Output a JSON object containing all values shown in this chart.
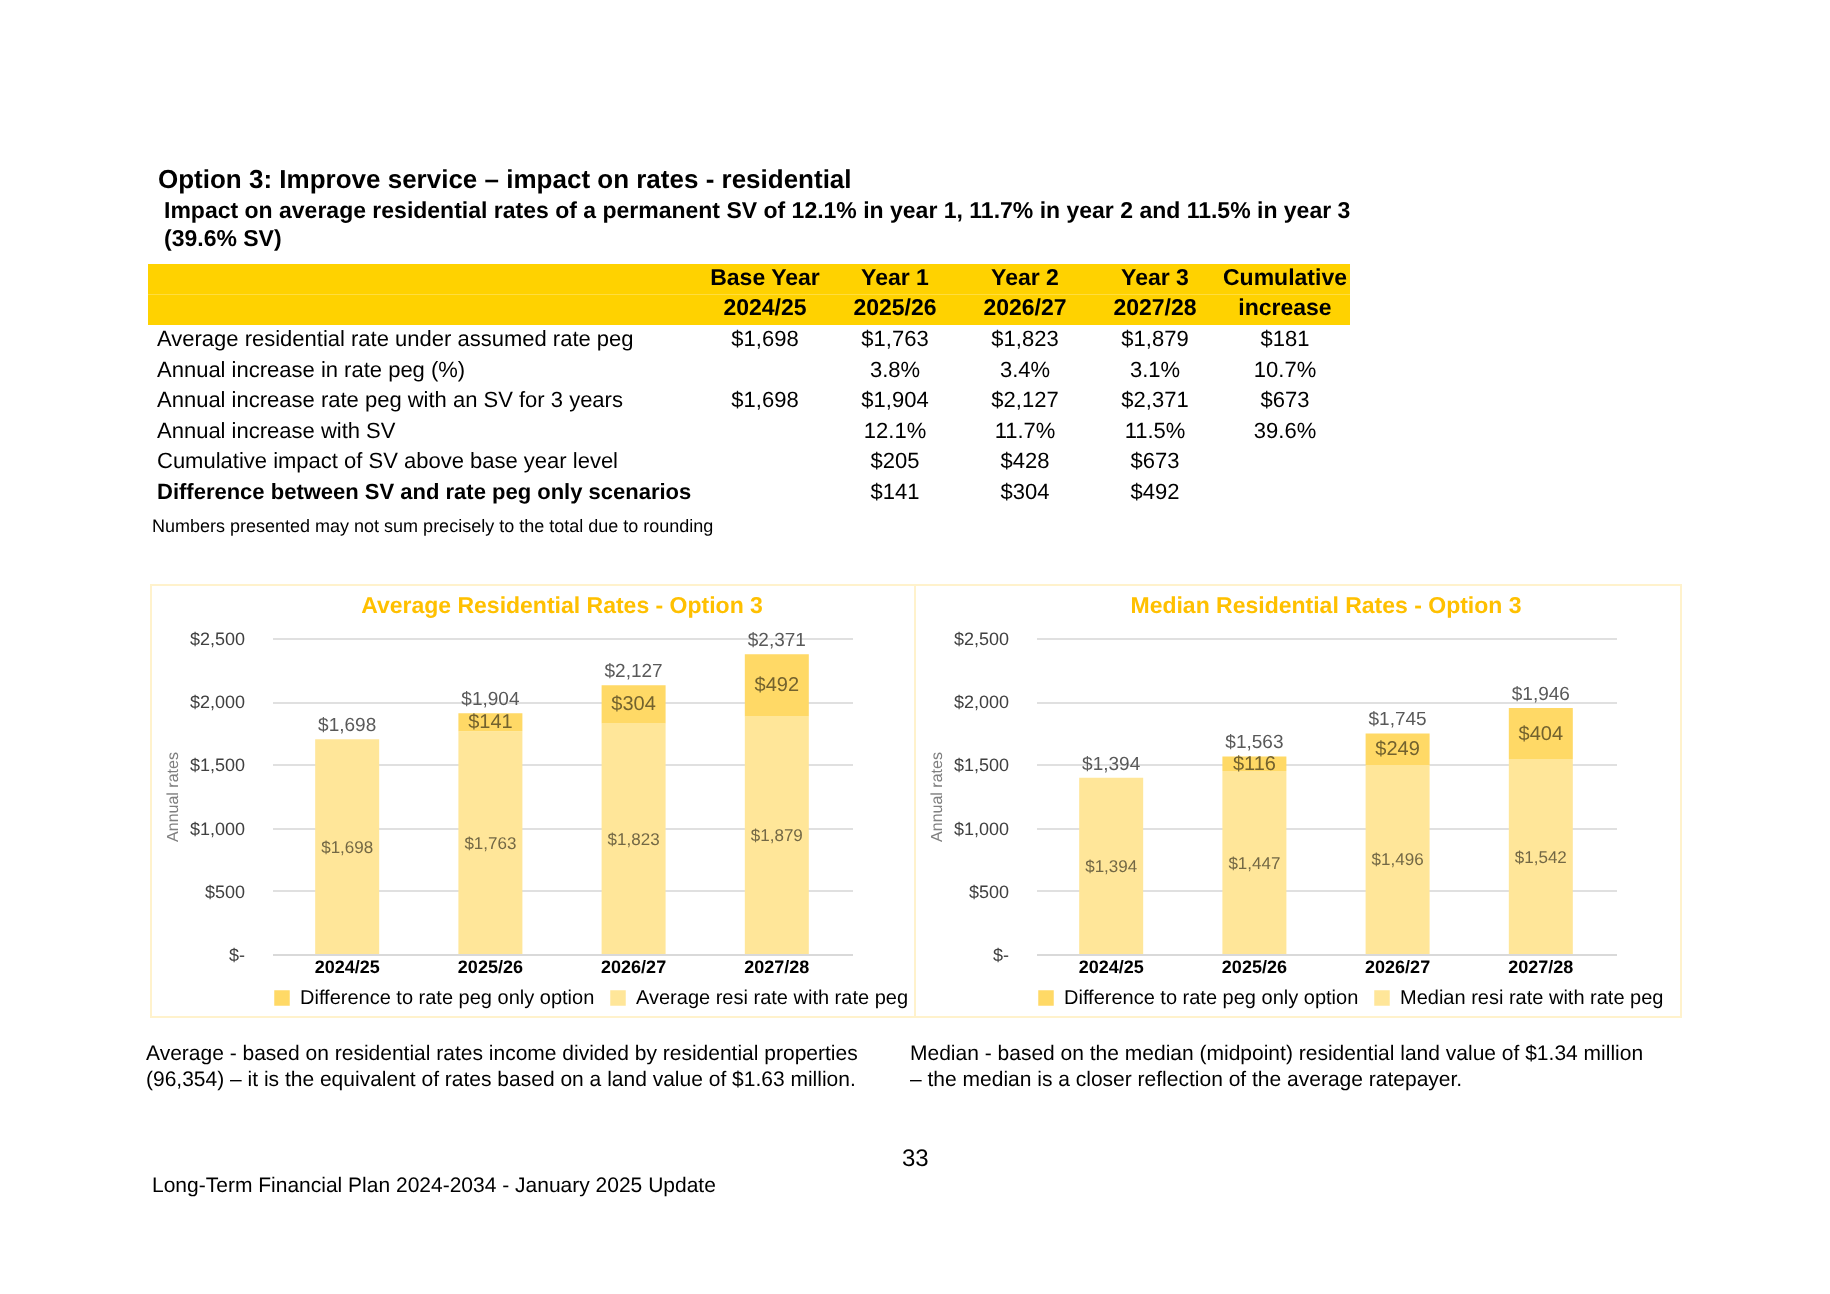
{
  "chart_data": [
    {
      "type": "heatmap",
      "title": "Option 3: Improve service – impact on rates - residential",
      "subtitle": "Impact on average residential rates of a permanent SV of 12.1% in year 1, 11.7% in year 2 and 11.5% in year 3 (39.6% SV)",
      "categories": [
        "Base Year\n2024/25",
        "Year 1\n2025/26",
        "Year 2\n2026/27",
        "Year 3\n2027/28",
        "Cumulative\nincrease"
      ],
      "y_categories": [
        "Average residential rate under assumed rate peg",
        "Annual increase in rate peg (%)",
        "Annual increase rate peg with an SV for 3 years",
        "Annual increase with SV",
        "Cumulative impact of SV above base year level",
        "Difference between SV and rate peg only scenarios"
      ],
      "cells": [
        [
          1698,
          1763,
          1823,
          1879,
          181
        ],
        [
          null,
          3.8,
          3.4,
          3.1,
          10.7
        ],
        [
          1698,
          1904,
          2127,
          2371,
          673
        ],
        [
          null,
          12.1,
          11.7,
          11.5,
          39.6
        ],
        [
          null,
          205,
          428,
          673,
          null
        ],
        [
          null,
          141,
          304,
          492,
          null
        ]
      ],
      "cell_labels": [
        [
          "$1,698",
          "$1,763",
          "$1,823",
          "$1,879",
          "$181"
        ],
        [
          null,
          "3.8%",
          "3.4%",
          "3.1%",
          "10.7%"
        ],
        [
          "$1,698",
          "$1,904",
          "$2,127",
          "$2,371",
          "$673"
        ],
        [
          null,
          "12.1%",
          "11.7%",
          "11.5%",
          "39.6%"
        ],
        [
          null,
          "$205",
          "$428",
          "$673",
          null
        ],
        [
          null,
          "$141",
          "$304",
          "$492",
          null
        ]
      ],
      "annotations": [
        "Numbers presented may not sum precisely to the total due to rounding",
        "33",
        "Long-Term Financial Plan 2024-2034 - January 2025 Update"
      ]
    },
    {
      "type": "bar",
      "title": "Average Residential Rates - Option 3",
      "ylabel": "Annual rates",
      "stacked": true,
      "legend": "bottom",
      "grid": "y",
      "categories": [
        "2024/25",
        "2025/26",
        "2026/27",
        "2027/28"
      ],
      "ylim": [
        0,
        2500
      ],
      "yticks": [
        {
          "value": 0,
          "label": "$-"
        },
        {
          "value": 500,
          "label": "$500"
        },
        {
          "value": 1000,
          "label": "$1,000"
        },
        {
          "value": 1500,
          "label": "$1,500"
        },
        {
          "value": 2000,
          "label": "$2,000"
        },
        {
          "value": 2500,
          "label": "$2,500"
        }
      ],
      "series": [
        {
          "name": "Average resi rate with rate peg",
          "color": "#ffe699",
          "values": [
            1698,
            1763,
            1823,
            1879
          ],
          "value_labels": [
            "$1,698",
            "$1,763",
            "$1,823",
            "$1,879"
          ]
        },
        {
          "name": "Difference to rate peg only option",
          "color": "#ffd966",
          "values": [
            null,
            141,
            304,
            492
          ],
          "value_labels": [
            null,
            "$141",
            "$304",
            "$492"
          ]
        }
      ],
      "totals": [
        "$1,698",
        "$1,904",
        "$2,127",
        "$2,371"
      ],
      "annotations": [
        "Average - based on residential rates income divided by residential properties (96,354) – it is the equivalent of rates based on a land value of $1.63 million."
      ]
    },
    {
      "type": "bar",
      "title": "Median Residential Rates - Option 3",
      "ylabel": "Annual rates",
      "stacked": true,
      "legend": "bottom",
      "grid": "y",
      "categories": [
        "2024/25",
        "2025/26",
        "2026/27",
        "2027/28"
      ],
      "ylim": [
        0,
        2500
      ],
      "yticks": [
        {
          "value": 0,
          "label": "$-"
        },
        {
          "value": 500,
          "label": "$500"
        },
        {
          "value": 1000,
          "label": "$1,000"
        },
        {
          "value": 1500,
          "label": "$1,500"
        },
        {
          "value": 2000,
          "label": "$2,000"
        },
        {
          "value": 2500,
          "label": "$2,500"
        }
      ],
      "series": [
        {
          "name": "Median resi rate with rate peg",
          "color": "#ffe699",
          "values": [
            1394,
            1447,
            1496,
            1542
          ],
          "value_labels": [
            "$1,394",
            "$1,447",
            "$1,496",
            "$1,542"
          ]
        },
        {
          "name": "Difference to rate peg only option",
          "color": "#ffd966",
          "values": [
            null,
            116,
            249,
            404
          ],
          "value_labels": [
            null,
            "$116",
            "$249",
            "$404"
          ]
        }
      ],
      "totals": [
        "$1,394",
        "$1,563",
        "$1,745",
        "$1,946"
      ],
      "annotations": [
        "Median - based on the median (midpoint) residential land value of $1.34 million – the median is a closer reflection of the average ratepayer."
      ]
    }
  ]
}
